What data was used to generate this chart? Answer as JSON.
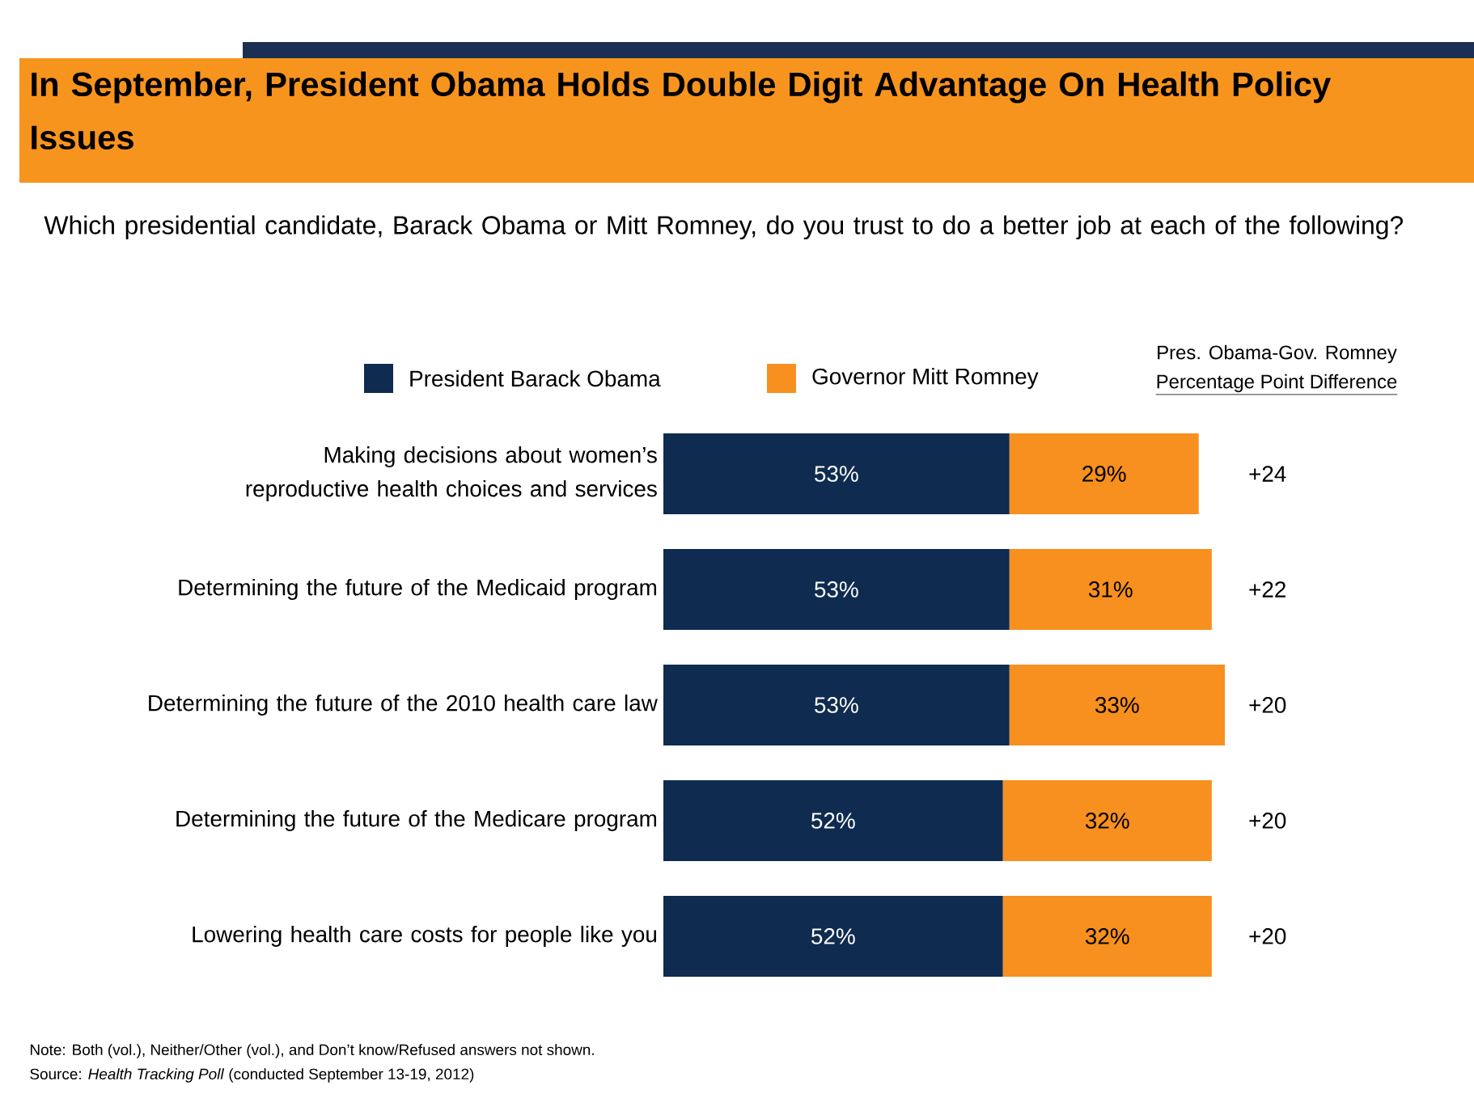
{
  "chart_data": {
    "type": "bar",
    "orientation": "horizontal",
    "stacked": true,
    "legend": "top",
    "title": "In September, President Obama Holds Double Digit Advantage On Health Policy Issues",
    "subtitle": "Which presidential candidate, Barack Obama or Mitt Romney, do you trust to do a better job at each of the following?",
    "categories": [
      "Making decisions about women’s reproductive health choices and services",
      "Determining the future of the Medicaid program",
      "Determining the future of the 2010 health care law",
      "Determining the future of the Medicare program",
      "Lowering health care costs for people like you"
    ],
    "series": [
      {
        "name": "President Barack Obama",
        "color": "#0f2b4f",
        "values": [
          53,
          53,
          53,
          52,
          52
        ],
        "value_labels": [
          "53%",
          "53%",
          "53%",
          "52%",
          "52%"
        ]
      },
      {
        "name": "Governor Mitt Romney",
        "color": "#f7901e",
        "values": [
          29,
          31,
          33,
          32,
          32
        ],
        "value_labels": [
          "29%",
          "31%",
          "33%",
          "32%",
          "32%"
        ]
      }
    ],
    "annotations": [
      "Pres. Obama-Gov. Romney",
      "Percentage Point Difference",
      "Note: Both (vol.), Neither/Other (vol.), and Don’t know/Refused answers not shown.",
      "Source: *Health Tracking Poll* (conducted September 13-19, 2012)",
      "+24",
      "+22",
      "+20",
      "+20",
      "+20"
    ]
  }
}
